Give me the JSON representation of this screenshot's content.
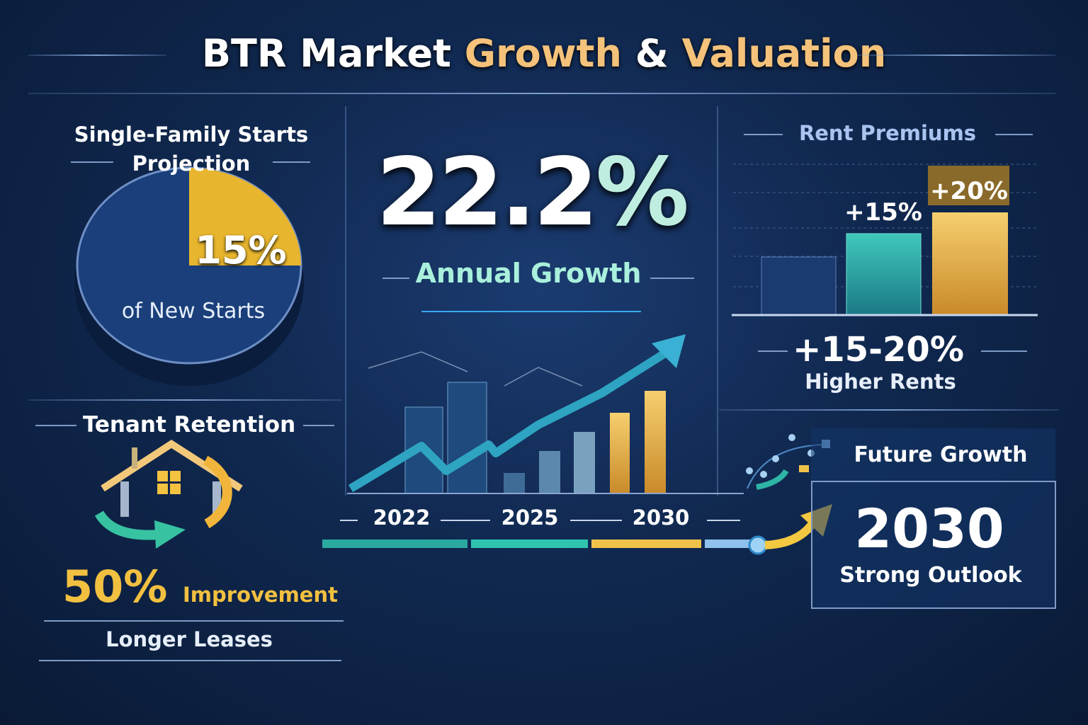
{
  "title": {
    "part1": "BTR Market ",
    "part2": "Growth",
    "part3": " & ",
    "part4": "Valuation"
  },
  "starts": {
    "heading_line1": "Single-Family Starts",
    "heading_line2": "Projection",
    "share": "15%",
    "share_fraction": 0.15,
    "caption": "of New Starts"
  },
  "retention": {
    "heading": "Tenant Retention",
    "value": "50%",
    "value_label": "Improvement",
    "caption": "Longer Leases",
    "icon": "house-cycle-icon"
  },
  "growth": {
    "value_number": "22.2",
    "value_percent": "%",
    "caption": "Annual Growth",
    "years": [
      "2022",
      "2025",
      "2030"
    ]
  },
  "rent": {
    "heading": "Rent Premiums",
    "bar_labels": [
      "",
      "+15%",
      "+20%"
    ],
    "bar_values": [
      0,
      15,
      20
    ],
    "range": "+15-20%",
    "caption": "Higher Rents"
  },
  "future": {
    "heading": "Future Growth",
    "year": "2030",
    "caption": "Strong Outlook"
  },
  "colors": {
    "gold": "#f4c27a",
    "teal": "#2fb5a5",
    "navy": "#10284f",
    "light_teal": "#a9f0dc"
  }
}
